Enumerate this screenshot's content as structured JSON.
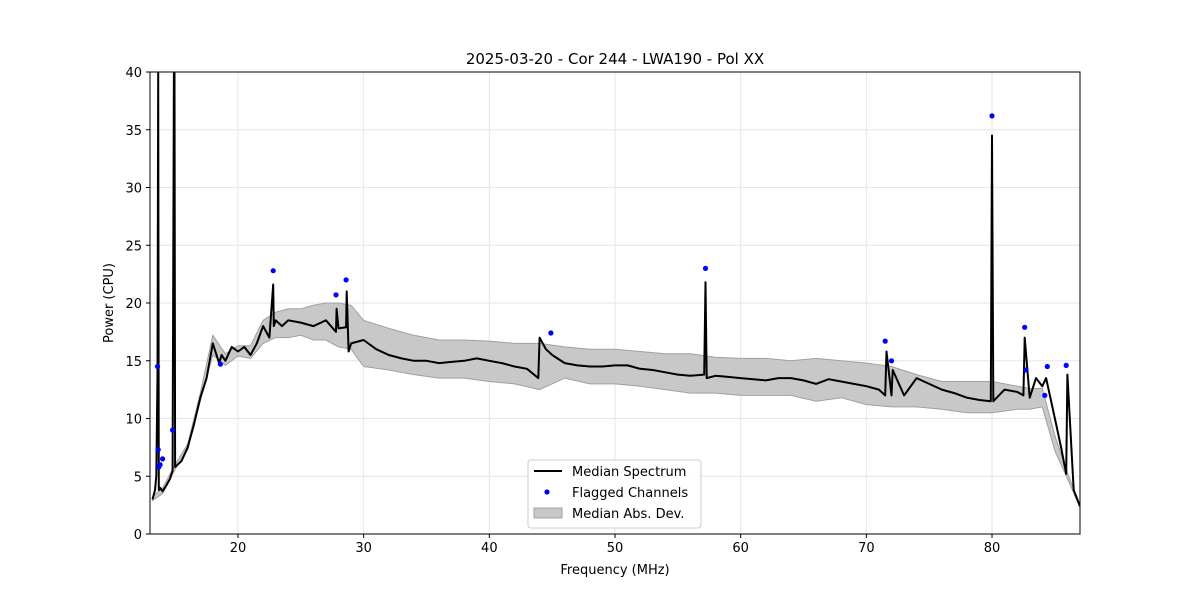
{
  "chart_data": {
    "type": "line",
    "title": "2025-03-20 - Cor 244 - LWA190 - Pol XX",
    "xlabel": "Frequency (MHz)",
    "ylabel": "Power (CPU)",
    "xlim": [
      13,
      87
    ],
    "ylim": [
      0,
      40
    ],
    "xticks": [
      20,
      30,
      40,
      50,
      60,
      70,
      80
    ],
    "yticks": [
      0,
      5,
      10,
      15,
      20,
      25,
      30,
      35,
      40
    ],
    "grid": true,
    "legend_placement": "lower-center",
    "legend": [
      "Median Spectrum",
      "Flagged Channels",
      "Median Abs. Dev."
    ],
    "colors": {
      "median": "#000000",
      "flagged": "#0000ff",
      "mad": "#c8c8c8",
      "mad_edge": "#a0a0a0",
      "grid": "#e6e6e6"
    },
    "series": [
      {
        "name": "Median Spectrum",
        "x": [
          13.2,
          13.4,
          13.5,
          13.6,
          13.65,
          13.7,
          13.8,
          14.0,
          14.3,
          14.6,
          14.8,
          14.9,
          14.95,
          15.0,
          15.2,
          15.5,
          16.0,
          16.5,
          17.0,
          17.5,
          18.0,
          18.5,
          18.7,
          19.0,
          19.5,
          20.0,
          20.5,
          21.0,
          21.5,
          22.0,
          22.5,
          22.8,
          22.85,
          23.0,
          23.5,
          24.0,
          25.0,
          26.0,
          27.0,
          27.8,
          27.85,
          28.0,
          28.6,
          28.65,
          28.8,
          29.0,
          30.0,
          31.0,
          32.0,
          33.0,
          34.0,
          35.0,
          36.0,
          37.0,
          38.0,
          39.0,
          40.0,
          41.0,
          42.0,
          43.0,
          43.9,
          44.0,
          44.5,
          45.0,
          46.0,
          47.0,
          48.0,
          49.0,
          50.0,
          51.0,
          52.0,
          53.0,
          54.0,
          55.0,
          56.0,
          57.1,
          57.2,
          57.3,
          58.0,
          59.0,
          60.0,
          61.0,
          62.0,
          63.0,
          64.0,
          65.0,
          66.0,
          67.0,
          68.0,
          69.0,
          70.0,
          71.0,
          71.5,
          71.6,
          72.0,
          72.1,
          73.0,
          74.0,
          75.0,
          76.0,
          77.0,
          78.0,
          79.0,
          79.9,
          80.0,
          80.1,
          81.0,
          82.0,
          82.5,
          82.6,
          83.0,
          83.5,
          84.0,
          84.3,
          84.5,
          85.0,
          85.5,
          85.9,
          86.0,
          86.5,
          87.0
        ],
        "values": [
          3.0,
          3.8,
          5.0,
          13.8,
          40.0,
          3.8,
          4.0,
          3.7,
          4.2,
          4.8,
          5.5,
          40.0,
          40.0,
          5.8,
          6.0,
          6.3,
          7.5,
          9.5,
          11.8,
          13.5,
          16.5,
          14.8,
          15.5,
          15.0,
          16.2,
          15.8,
          16.2,
          15.5,
          16.5,
          18.0,
          17.0,
          21.6,
          18.0,
          18.5,
          18.0,
          18.5,
          18.3,
          18.0,
          18.5,
          17.5,
          19.5,
          17.8,
          17.9,
          21.0,
          15.8,
          16.5,
          16.8,
          16.0,
          15.5,
          15.2,
          15.0,
          15.0,
          14.8,
          14.9,
          15.0,
          15.2,
          15.0,
          14.8,
          14.5,
          14.3,
          13.5,
          17.0,
          16.0,
          15.5,
          14.8,
          14.6,
          14.5,
          14.5,
          14.6,
          14.6,
          14.3,
          14.2,
          14.0,
          13.8,
          13.7,
          13.8,
          21.8,
          13.5,
          13.7,
          13.6,
          13.5,
          13.4,
          13.3,
          13.5,
          13.5,
          13.3,
          13.0,
          13.4,
          13.2,
          13.0,
          12.8,
          12.5,
          12.0,
          15.8,
          12.0,
          14.2,
          12.0,
          13.5,
          13.0,
          12.5,
          12.2,
          11.8,
          11.6,
          11.5,
          34.5,
          11.5,
          12.5,
          12.3,
          12.0,
          17.0,
          11.8,
          13.5,
          12.8,
          13.5,
          12.5,
          10.0,
          7.5,
          5.2,
          13.8,
          3.8,
          2.4
        ]
      },
      {
        "name": "Median Abs. Dev.",
        "x": [
          13.2,
          14.0,
          15.0,
          16.0,
          17.0,
          18.0,
          19.0,
          20.0,
          21.0,
          22.0,
          23.0,
          24.0,
          25.0,
          26.0,
          27.0,
          28.0,
          29.0,
          30.0,
          32.0,
          34.0,
          36.0,
          38.0,
          40.0,
          42.0,
          44.0,
          46.0,
          48.0,
          50.0,
          52.0,
          54.0,
          56.0,
          58.0,
          60.0,
          62.0,
          64.0,
          66.0,
          68.0,
          70.0,
          72.0,
          74.0,
          76.0,
          78.0,
          80.0,
          82.0,
          83.0,
          84.0,
          85.0,
          86.0,
          87.0
        ],
        "lower": [
          2.9,
          3.5,
          5.6,
          7.3,
          11.5,
          15.5,
          14.6,
          15.4,
          15.2,
          16.5,
          17.0,
          17.0,
          17.2,
          16.8,
          16.8,
          16.2,
          16.0,
          14.5,
          14.2,
          13.8,
          13.5,
          13.5,
          13.2,
          13.0,
          12.5,
          13.5,
          13.0,
          13.0,
          12.8,
          12.5,
          12.2,
          12.2,
          12.0,
          12.0,
          12.0,
          11.5,
          11.8,
          11.2,
          11.0,
          11.0,
          10.8,
          10.5,
          10.5,
          10.8,
          10.8,
          11.0,
          7.2,
          4.8,
          2.3
        ],
        "upper": [
          3.2,
          4.0,
          6.0,
          7.8,
          12.2,
          17.2,
          15.6,
          16.3,
          16.3,
          18.5,
          19.2,
          19.5,
          19.5,
          19.8,
          20.0,
          20.0,
          19.8,
          18.5,
          17.8,
          17.2,
          16.8,
          16.8,
          16.7,
          16.5,
          16.5,
          16.2,
          16.0,
          16.0,
          15.8,
          15.6,
          15.6,
          15.3,
          15.2,
          15.2,
          15.0,
          15.2,
          15.0,
          14.8,
          14.5,
          13.8,
          13.2,
          13.2,
          13.2,
          12.8,
          12.6,
          12.6,
          8.5,
          5.3,
          2.5
        ]
      },
      {
        "name": "Flagged Channels",
        "x": [
          13.6,
          13.65,
          13.7,
          13.8,
          14.0,
          14.8,
          18.6,
          22.8,
          27.8,
          28.6,
          44.9,
          57.2,
          71.5,
          72.0,
          80.0,
          82.6,
          82.7,
          84.2,
          84.4,
          85.9
        ],
        "values": [
          14.5,
          7.3,
          5.8,
          6.0,
          6.5,
          9.0,
          14.7,
          22.8,
          20.7,
          22.0,
          17.4,
          23.0,
          16.7,
          15.0,
          36.2,
          17.9,
          14.2,
          12.0,
          14.5,
          14.6
        ]
      }
    ]
  }
}
